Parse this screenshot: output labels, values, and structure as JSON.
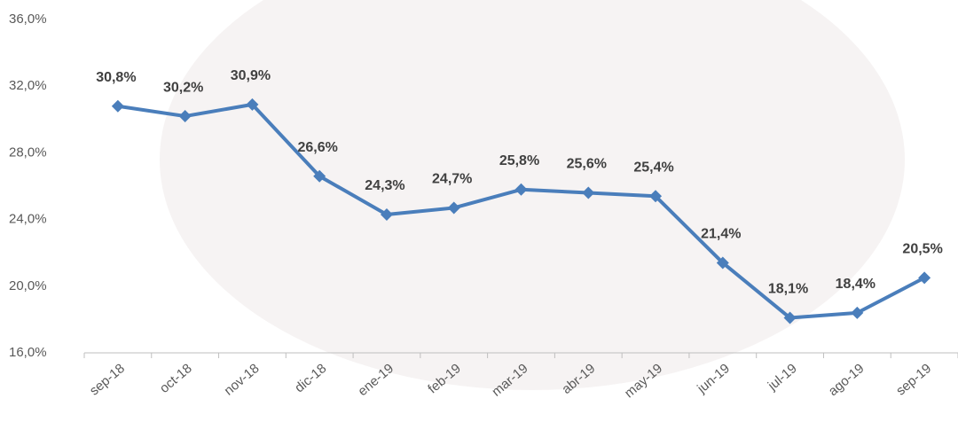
{
  "chart_data": {
    "type": "line",
    "categories": [
      "sep-18",
      "oct-18",
      "nov-18",
      "dic-18",
      "ene-19",
      "feb-19",
      "mar-19",
      "abr-19",
      "may-19",
      "jun-19",
      "jul-19",
      "ago-19",
      "sep-19"
    ],
    "series": [
      {
        "color": "#4a7ebb",
        "values": [
          30.8,
          30.2,
          30.9,
          26.6,
          24.3,
          24.7,
          25.8,
          25.6,
          25.4,
          21.4,
          18.1,
          18.4,
          20.5
        ],
        "value_labels": [
          "30,8%",
          "30,2%",
          "30,9%",
          "26,6%",
          "24,3%",
          "24,7%",
          "25,8%",
          "25,6%",
          "25,4%",
          "21,4%",
          "18,1%",
          "18,4%",
          "20,5%"
        ]
      }
    ],
    "ylim": [
      16,
      36
    ],
    "yticks": [
      {
        "value": 16,
        "label": "16,0%"
      },
      {
        "value": 20,
        "label": "20,0%"
      },
      {
        "value": 24,
        "label": "24,0%"
      },
      {
        "value": 28,
        "label": "28,0%"
      },
      {
        "value": 32,
        "label": "32,0%"
      },
      {
        "value": 36,
        "label": "36,0%"
      }
    ],
    "grid": false
  }
}
